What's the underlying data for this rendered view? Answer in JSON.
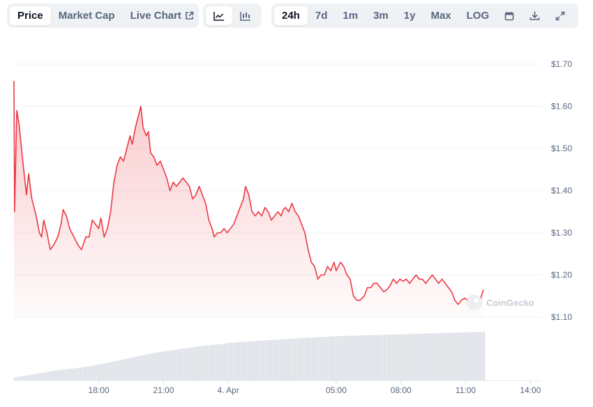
{
  "toolbar": {
    "tabs": [
      {
        "label": "Price",
        "active": true
      },
      {
        "label": "Market Cap",
        "active": false
      },
      {
        "label": "Live Chart",
        "active": false,
        "icon": "external-link-icon"
      }
    ],
    "chart_types": [
      {
        "icon": "line-chart-icon",
        "active": true
      },
      {
        "icon": "candlestick-chart-icon",
        "active": false
      }
    ],
    "ranges": [
      {
        "label": "24h",
        "active": true
      },
      {
        "label": "7d",
        "active": false
      },
      {
        "label": "1m",
        "active": false
      },
      {
        "label": "3m",
        "active": false
      },
      {
        "label": "1y",
        "active": false
      },
      {
        "label": "Max",
        "active": false
      },
      {
        "label": "LOG",
        "active": false
      }
    ],
    "tools": [
      "calendar-icon",
      "download-icon",
      "expand-icon"
    ]
  },
  "watermark": "CoinGecko",
  "colors": {
    "line": "#ea3943",
    "area": "#ea3943",
    "volume": "#dfe3e8",
    "grid": "#eff2f5"
  },
  "chart_data": {
    "type": "line",
    "title": "",
    "xlabel": "",
    "ylabel": "",
    "y_ticks": [
      "$1.10",
      "$1.20",
      "$1.30",
      "$1.40",
      "$1.50",
      "$1.60",
      "$1.70"
    ],
    "ylim": [
      1.1,
      1.7
    ],
    "x_ticks": [
      {
        "label": "18:00",
        "hour": 18
      },
      {
        "label": "21:00",
        "hour": 21
      },
      {
        "label": "4. Apr",
        "hour": 24
      },
      {
        "label": "05:00",
        "hour": 29
      },
      {
        "label": "08:00",
        "hour": 32
      },
      {
        "label": "11:00",
        "hour": 35
      },
      {
        "label": "14:00",
        "hour": 38
      }
    ],
    "xlim": [
      14.07,
      38.54
    ],
    "series": [
      {
        "values": [
          [
            14.07,
            1.66
          ],
          [
            14.1,
            1.35
          ],
          [
            14.2,
            1.59
          ],
          [
            14.3,
            1.56
          ],
          [
            14.5,
            1.46
          ],
          [
            14.65,
            1.39
          ],
          [
            14.75,
            1.44
          ],
          [
            14.9,
            1.38
          ],
          [
            15.1,
            1.34
          ],
          [
            15.25,
            1.3
          ],
          [
            15.35,
            1.29
          ],
          [
            15.45,
            1.33
          ],
          [
            15.6,
            1.3
          ],
          [
            15.75,
            1.26
          ],
          [
            15.9,
            1.27
          ],
          [
            16.1,
            1.29
          ],
          [
            16.25,
            1.32
          ],
          [
            16.35,
            1.355
          ],
          [
            16.5,
            1.34
          ],
          [
            16.65,
            1.31
          ],
          [
            16.85,
            1.29
          ],
          [
            17.05,
            1.27
          ],
          [
            17.2,
            1.26
          ],
          [
            17.4,
            1.29
          ],
          [
            17.55,
            1.29
          ],
          [
            17.7,
            1.33
          ],
          [
            17.85,
            1.32
          ],
          [
            18.0,
            1.31
          ],
          [
            18.1,
            1.335
          ],
          [
            18.25,
            1.29
          ],
          [
            18.4,
            1.31
          ],
          [
            18.55,
            1.35
          ],
          [
            18.7,
            1.42
          ],
          [
            18.85,
            1.46
          ],
          [
            19.0,
            1.48
          ],
          [
            19.15,
            1.47
          ],
          [
            19.3,
            1.5
          ],
          [
            19.45,
            1.53
          ],
          [
            19.55,
            1.51
          ],
          [
            19.7,
            1.55
          ],
          [
            19.85,
            1.58
          ],
          [
            19.95,
            1.6
          ],
          [
            20.05,
            1.55
          ],
          [
            20.2,
            1.53
          ],
          [
            20.3,
            1.54
          ],
          [
            20.4,
            1.49
          ],
          [
            20.55,
            1.48
          ],
          [
            20.7,
            1.46
          ],
          [
            20.85,
            1.47
          ],
          [
            21.0,
            1.45
          ],
          [
            21.15,
            1.43
          ],
          [
            21.3,
            1.4
          ],
          [
            21.45,
            1.42
          ],
          [
            21.6,
            1.41
          ],
          [
            21.75,
            1.42
          ],
          [
            21.9,
            1.43
          ],
          [
            22.05,
            1.42
          ],
          [
            22.2,
            1.41
          ],
          [
            22.35,
            1.38
          ],
          [
            22.5,
            1.39
          ],
          [
            22.65,
            1.41
          ],
          [
            22.8,
            1.39
          ],
          [
            22.95,
            1.37
          ],
          [
            23.1,
            1.33
          ],
          [
            23.25,
            1.31
          ],
          [
            23.35,
            1.29
          ],
          [
            23.5,
            1.3
          ],
          [
            23.65,
            1.3
          ],
          [
            23.8,
            1.31
          ],
          [
            23.95,
            1.3
          ],
          [
            24.1,
            1.31
          ],
          [
            24.25,
            1.32
          ],
          [
            24.4,
            1.34
          ],
          [
            24.55,
            1.36
          ],
          [
            24.7,
            1.38
          ],
          [
            24.8,
            1.41
          ],
          [
            24.95,
            1.39
          ],
          [
            25.1,
            1.35
          ],
          [
            25.25,
            1.34
          ],
          [
            25.4,
            1.35
          ],
          [
            25.55,
            1.34
          ],
          [
            25.7,
            1.36
          ],
          [
            25.85,
            1.35
          ],
          [
            26.0,
            1.33
          ],
          [
            26.15,
            1.34
          ],
          [
            26.3,
            1.35
          ],
          [
            26.45,
            1.34
          ],
          [
            26.55,
            1.355
          ],
          [
            26.65,
            1.36
          ],
          [
            26.8,
            1.35
          ],
          [
            26.95,
            1.37
          ],
          [
            27.1,
            1.35
          ],
          [
            27.25,
            1.34
          ],
          [
            27.4,
            1.32
          ],
          [
            27.55,
            1.3
          ],
          [
            27.7,
            1.26
          ],
          [
            27.85,
            1.23
          ],
          [
            28.0,
            1.22
          ],
          [
            28.15,
            1.19
          ],
          [
            28.3,
            1.2
          ],
          [
            28.45,
            1.2
          ],
          [
            28.6,
            1.22
          ],
          [
            28.75,
            1.21
          ],
          [
            28.9,
            1.23
          ],
          [
            29.0,
            1.21
          ],
          [
            29.2,
            1.23
          ],
          [
            29.35,
            1.22
          ],
          [
            29.5,
            1.2
          ],
          [
            29.65,
            1.19
          ],
          [
            29.8,
            1.15
          ],
          [
            29.95,
            1.14
          ],
          [
            30.1,
            1.14
          ],
          [
            30.3,
            1.15
          ],
          [
            30.45,
            1.17
          ],
          [
            30.6,
            1.17
          ],
          [
            30.75,
            1.18
          ],
          [
            30.9,
            1.18
          ],
          [
            31.05,
            1.17
          ],
          [
            31.2,
            1.16
          ],
          [
            31.35,
            1.165
          ],
          [
            31.5,
            1.175
          ],
          [
            31.65,
            1.19
          ],
          [
            31.8,
            1.18
          ],
          [
            31.95,
            1.19
          ],
          [
            32.1,
            1.185
          ],
          [
            32.25,
            1.19
          ],
          [
            32.4,
            1.18
          ],
          [
            32.55,
            1.19
          ],
          [
            32.7,
            1.2
          ],
          [
            32.85,
            1.19
          ],
          [
            33.0,
            1.19
          ],
          [
            33.15,
            1.18
          ],
          [
            33.3,
            1.19
          ],
          [
            33.45,
            1.2
          ],
          [
            33.6,
            1.19
          ],
          [
            33.75,
            1.18
          ],
          [
            33.9,
            1.19
          ],
          [
            34.05,
            1.18
          ],
          [
            34.2,
            1.17
          ],
          [
            34.35,
            1.16
          ],
          [
            34.5,
            1.14
          ],
          [
            34.65,
            1.13
          ],
          [
            34.8,
            1.14
          ],
          [
            34.95,
            1.145
          ],
          [
            35.1,
            1.14
          ],
          [
            35.25,
            1.15
          ],
          [
            35.4,
            1.14
          ],
          [
            35.55,
            1.135
          ],
          [
            35.7,
            1.145
          ],
          [
            35.82,
            1.165
          ]
        ]
      }
    ],
    "volume_series": {
      "values": [
        [
          14.07,
          0.05
        ],
        [
          15.0,
          0.1
        ],
        [
          16.0,
          0.16
        ],
        [
          16.8,
          0.19
        ],
        [
          17.6,
          0.23
        ],
        [
          18.4,
          0.28
        ],
        [
          19.2,
          0.34
        ],
        [
          20.0,
          0.4
        ],
        [
          20.8,
          0.45
        ],
        [
          21.6,
          0.49
        ],
        [
          22.4,
          0.53
        ],
        [
          23.2,
          0.56
        ],
        [
          24.0,
          0.59
        ],
        [
          25.0,
          0.62
        ],
        [
          26.0,
          0.64
        ],
        [
          27.0,
          0.66
        ],
        [
          28.0,
          0.68
        ],
        [
          29.0,
          0.7
        ],
        [
          30.0,
          0.71
        ],
        [
          31.0,
          0.72
        ],
        [
          32.0,
          0.73
        ],
        [
          33.0,
          0.74
        ],
        [
          34.0,
          0.75
        ],
        [
          35.0,
          0.76
        ],
        [
          35.82,
          0.77
        ]
      ],
      "max": 1.0
    }
  }
}
